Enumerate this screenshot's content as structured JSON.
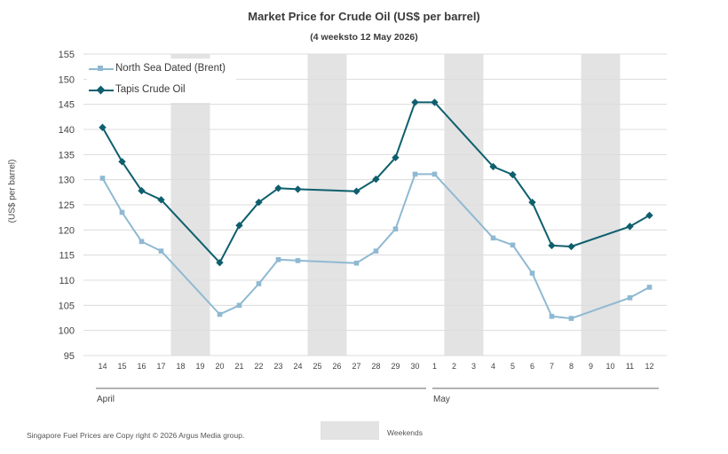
{
  "chart_data": {
    "type": "line",
    "title": "Market Price for Crude  Oil (US$ per barrel)",
    "subtitle": "(4 weeksto 12 May 2026)",
    "ylabel": "(US$ per barrel)",
    "ylim": [
      95,
      155
    ],
    "yticks": [
      "95",
      "100",
      "105",
      "110",
      "115",
      "120",
      "125",
      "130",
      "135",
      "140",
      "145",
      "150",
      "155"
    ],
    "grid": true,
    "legend_position": "top-left",
    "x": [
      "14",
      "15",
      "16",
      "17",
      "18",
      "19",
      "20",
      "21",
      "22",
      "23",
      "24",
      "25",
      "26",
      "27",
      "28",
      "29",
      "30",
      "1",
      "2",
      "3",
      "4",
      "5",
      "6",
      "7",
      "8",
      "9",
      "10",
      "11",
      "12"
    ],
    "months": [
      {
        "label": "April",
        "from": "14",
        "to": "30"
      },
      {
        "label": "May",
        "from": "1",
        "to": "12"
      }
    ],
    "weekends": [
      [
        "18",
        "19"
      ],
      [
        "25",
        "26"
      ],
      [
        "2",
        "3"
      ],
      [
        "9",
        "10"
      ]
    ],
    "series": [
      {
        "name": "North Sea Dated (Brent)",
        "color": "#8fb9d2",
        "marker": "square",
        "values": [
          130.3,
          123.5,
          117.7,
          115.8,
          null,
          null,
          103.2,
          105.0,
          109.3,
          114.1,
          113.9,
          null,
          null,
          113.4,
          115.8,
          120.2,
          131.1,
          131.1,
          null,
          null,
          118.4,
          117.0,
          111.4,
          102.8,
          102.4,
          null,
          null,
          106.5,
          108.6
        ]
      },
      {
        "name": "Tapis Crude Oil",
        "color": "#0e5f6e",
        "marker": "diamond",
        "values": [
          140.4,
          133.6,
          127.8,
          126.0,
          null,
          null,
          113.5,
          120.9,
          125.5,
          128.3,
          128.1,
          null,
          null,
          127.7,
          130.1,
          134.4,
          145.4,
          145.4,
          null,
          null,
          132.6,
          131.0,
          125.5,
          116.9,
          116.7,
          null,
          null,
          120.7,
          122.9
        ]
      }
    ]
  },
  "footer": "Singapore  Fuel Prices are  Copy right © 2026 Argus Media  group.",
  "weekends_label": "Weekends",
  "colors": {
    "weekend_band": "#e3e3e3",
    "grid": "#dcdcdc",
    "axis_text": "#444444"
  }
}
